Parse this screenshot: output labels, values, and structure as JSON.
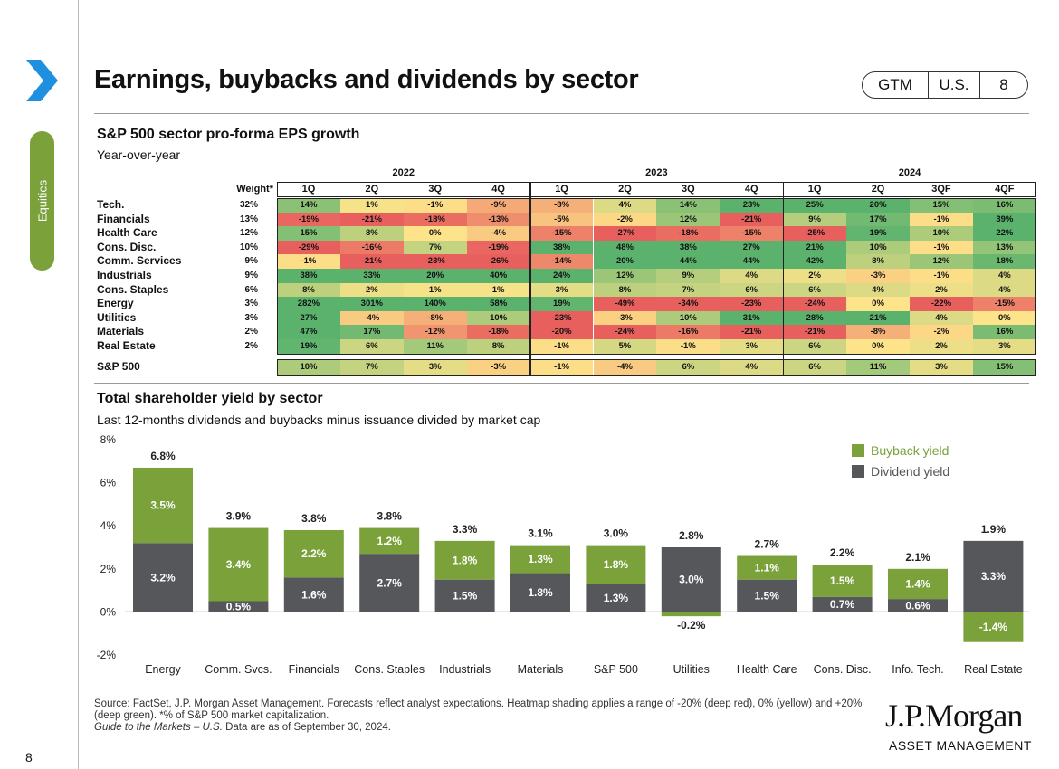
{
  "page": {
    "title": "Earnings, buybacks and dividends by sector",
    "badge": [
      "GTM",
      "U.S.",
      "8"
    ],
    "side_tab": "Equities",
    "page_number": "8"
  },
  "heatmap": {
    "title": "S&P 500 sector pro-forma EPS growth",
    "subtitle": "Year-over-year",
    "weight_header": "Weight*",
    "years": [
      "2022",
      "2023",
      "2024"
    ],
    "quarters": [
      "1Q",
      "2Q",
      "3Q",
      "4Q",
      "1Q",
      "2Q",
      "3Q",
      "4Q",
      "1Q",
      "2Q",
      "3QF",
      "4QF"
    ],
    "rows": [
      {
        "sector": "Tech.",
        "weight": "32%",
        "values": [
          14,
          1,
          -1,
          -9,
          -8,
          4,
          14,
          23,
          25,
          20,
          15,
          16
        ]
      },
      {
        "sector": "Financials",
        "weight": "13%",
        "values": [
          -19,
          -21,
          -18,
          -13,
          -5,
          -2,
          12,
          -21,
          9,
          17,
          -1,
          39
        ]
      },
      {
        "sector": "Health Care",
        "weight": "12%",
        "values": [
          15,
          8,
          0,
          -4,
          -15,
          -27,
          -18,
          -15,
          -25,
          19,
          10,
          22
        ]
      },
      {
        "sector": "Cons. Disc.",
        "weight": "10%",
        "values": [
          -29,
          -16,
          7,
          -19,
          38,
          48,
          38,
          27,
          21,
          10,
          -1,
          13
        ]
      },
      {
        "sector": "Comm. Services",
        "weight": "9%",
        "values": [
          -1,
          -21,
          -23,
          -26,
          -14,
          20,
          44,
          44,
          42,
          8,
          12,
          18
        ]
      },
      {
        "sector": "Industrials",
        "weight": "9%",
        "values": [
          38,
          33,
          20,
          40,
          24,
          12,
          9,
          4,
          2,
          -3,
          -1,
          4
        ]
      },
      {
        "sector": "Cons. Staples",
        "weight": "6%",
        "values": [
          8,
          2,
          1,
          1,
          3,
          8,
          7,
          6,
          6,
          4,
          2,
          4
        ]
      },
      {
        "sector": "Energy",
        "weight": "3%",
        "values": [
          282,
          301,
          140,
          58,
          19,
          -49,
          -34,
          -23,
          -24,
          0,
          -22,
          -15
        ]
      },
      {
        "sector": "Utilities",
        "weight": "3%",
        "values": [
          27,
          -4,
          -8,
          10,
          -23,
          -3,
          10,
          31,
          28,
          21,
          4,
          0
        ]
      },
      {
        "sector": "Materials",
        "weight": "2%",
        "values": [
          47,
          17,
          -12,
          -18,
          -20,
          -24,
          -16,
          -21,
          -21,
          -8,
          -2,
          16
        ]
      },
      {
        "sector": "Real Estate",
        "weight": "2%",
        "values": [
          19,
          6,
          11,
          8,
          -1,
          5,
          -1,
          3,
          6,
          0,
          2,
          3
        ]
      }
    ],
    "total": {
      "sector": "S&P 500",
      "values": [
        10,
        7,
        3,
        -3,
        -1,
        -4,
        6,
        4,
        6,
        11,
        3,
        15
      ]
    },
    "color_scale": {
      "deep_red": "#e8605e",
      "yellow": "#fde48a",
      "deep_green": "#5ab26c"
    }
  },
  "chart_data": {
    "type": "bar",
    "stacked": true,
    "title": "Total shareholder yield by sector",
    "subtitle": "Last 12-months dividends and buybacks minus issuance divided by market cap",
    "categories": [
      "Energy",
      "Comm. Svcs.",
      "Financials",
      "Cons. Staples",
      "Industrials",
      "Materials",
      "S&P 500",
      "Utilities",
      "Health Care",
      "Cons. Disc.",
      "Info. Tech.",
      "Real Estate"
    ],
    "series": [
      {
        "name": "Dividend yield",
        "color": "#55575a",
        "values": [
          3.2,
          0.5,
          1.6,
          2.7,
          1.5,
          1.8,
          1.3,
          3.0,
          1.5,
          0.7,
          0.6,
          3.3
        ]
      },
      {
        "name": "Buyback yield",
        "color": "#7aa13a",
        "values": [
          3.5,
          3.4,
          2.2,
          1.2,
          1.8,
          1.3,
          1.8,
          -0.2,
          1.1,
          1.5,
          1.4,
          -1.4
        ]
      }
    ],
    "totals": [
      6.8,
      3.9,
      3.8,
      3.8,
      3.3,
      3.1,
      3.0,
      2.8,
      2.7,
      2.2,
      2.1,
      1.9
    ],
    "ylim": [
      -2,
      8
    ],
    "yticks": [
      "-2%",
      "0%",
      "2%",
      "4%",
      "6%",
      "8%"
    ],
    "legend": [
      "Buyback yield",
      "Dividend yield"
    ],
    "legend_position": "top-right",
    "value_format": "%"
  },
  "footer": {
    "source": "Source: FactSet, J.P. Morgan Asset Management. Forecasts reflect analyst expectations. Heatmap shading applies a range of -20% (deep red), 0% (yellow) and +20% (deep green). *% of S&P 500 market capitalization.",
    "guide": "Guide to the Markets – U.S.",
    "date_note": " Data are as of September 30, 2024."
  },
  "brand": {
    "logo_name": "J.P.Morgan",
    "logo_sub": "ASSET MANAGEMENT"
  }
}
